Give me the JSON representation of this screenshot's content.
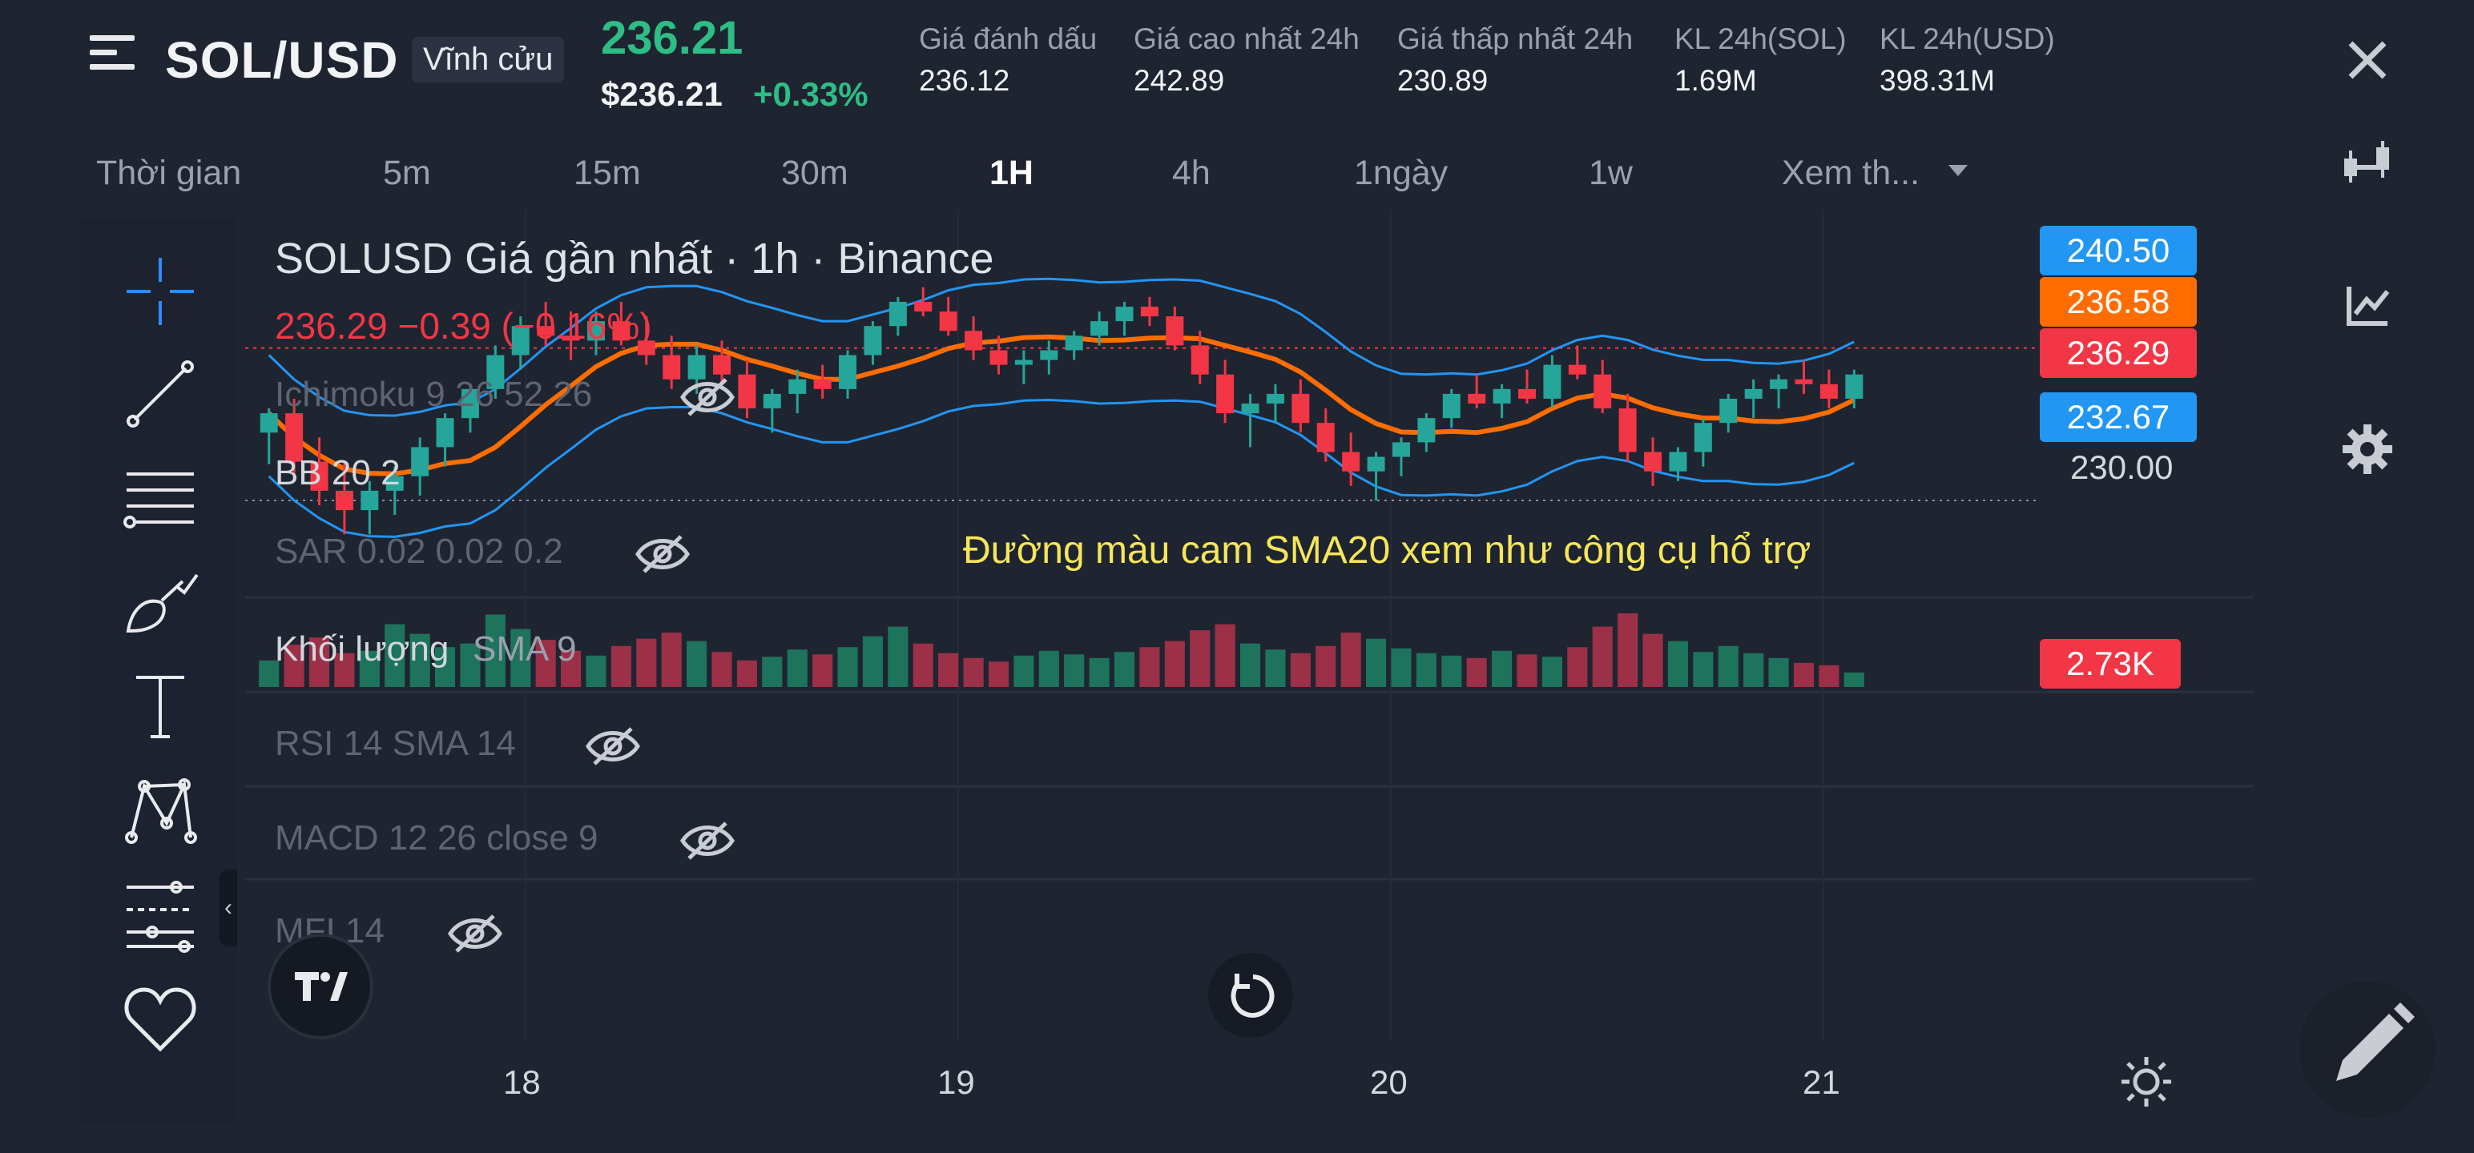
{
  "header": {
    "symbol": "SOL/USD",
    "contract_type": "Vĩnh cửu",
    "last_price": "236.21",
    "last_price_usd": "$236.21",
    "change_pct": "+0.33%",
    "stats": [
      {
        "label": "Giá đánh dấu",
        "value": "236.12"
      },
      {
        "label": "Giá cao nhất 24h",
        "value": "242.89"
      },
      {
        "label": "Giá thấp nhất 24h",
        "value": "230.89"
      },
      {
        "label": "KL 24h(SOL)",
        "value": "1.69M"
      },
      {
        "label": "KL 24h(USD)",
        "value": "398.31M"
      }
    ]
  },
  "timeframes": {
    "label": "Thời gian",
    "options": [
      "5m",
      "15m",
      "30m",
      "1H",
      "4h",
      "1ngày",
      "1w"
    ],
    "active": "1H",
    "more": "Xem th..."
  },
  "chart": {
    "legend_title": "SOLUSD Giá gần nhất · 1h · Binance",
    "legend_price": "236.29  −0.39 (−0.16%)",
    "indicators": [
      {
        "label": "Ichimoku 9 26 52 26",
        "hidden": true
      },
      {
        "label": "BB 20 2",
        "hidden": false
      },
      {
        "label": "SAR 0.02 0.02 0.2",
        "hidden": true
      }
    ],
    "annotation": "Đường màu cam SMA20 xem như công cụ hổ trợ",
    "volume_label": "Khối lượng",
    "volume_sma": "SMA 9",
    "volume_value": "2.73K",
    "sub_panes": [
      {
        "label": "RSI 14 SMA 14",
        "hidden": true
      },
      {
        "label": "MACD 12 26 close 9",
        "hidden": true
      },
      {
        "label": "MFI 14",
        "hidden": true
      }
    ],
    "price_tags": [
      {
        "value": "240.50",
        "color": "#2196f3"
      },
      {
        "value": "236.58",
        "color": "#ff6d00"
      },
      {
        "value": "236.29",
        "color": "#f23645"
      },
      {
        "value": "232.67",
        "color": "#2196f3"
      }
    ],
    "price_level": "230.00",
    "dates": [
      "18",
      "19",
      "20",
      "21"
    ],
    "colors": {
      "up": "#26a69a",
      "down": "#f23645",
      "sma": "#ff6d00",
      "bb": "#2196f3"
    }
  },
  "toolbar_icons": [
    "crosshair-icon",
    "trendline-icon",
    "fib-lines-icon",
    "brush-icon",
    "text-icon",
    "pattern-icon",
    "measure-icon",
    "favorite-icon"
  ],
  "right_icons": [
    "close-icon",
    "candles-icon",
    "chart-type-icon",
    "settings-icon",
    "sun-icon",
    "pencil-icon"
  ],
  "chart_data": {
    "type": "candlestick",
    "series": [
      {
        "name": "SOLUSD",
        "values": [
          [
            232.8,
            233.8,
            231.5,
            233.6
          ],
          [
            233.6,
            234.2,
            231.0,
            231.6
          ],
          [
            231.6,
            232.6,
            229.8,
            230.4
          ],
          [
            230.4,
            231.6,
            228.6,
            229.6
          ],
          [
            229.6,
            230.8,
            228.6,
            230.4
          ],
          [
            230.4,
            231.4,
            229.4,
            231.0
          ],
          [
            231.0,
            232.6,
            230.2,
            232.2
          ],
          [
            232.2,
            233.6,
            231.4,
            233.4
          ],
          [
            233.4,
            234.8,
            232.8,
            234.6
          ],
          [
            234.6,
            236.4,
            234.2,
            236.0
          ],
          [
            236.0,
            237.6,
            235.4,
            237.2
          ],
          [
            237.2,
            238.2,
            236.4,
            236.8
          ],
          [
            236.8,
            237.8,
            235.8,
            236.6
          ],
          [
            236.6,
            237.8,
            236.0,
            237.4
          ],
          [
            237.4,
            238.2,
            236.4,
            236.6
          ],
          [
            236.6,
            237.6,
            235.6,
            236.0
          ],
          [
            236.0,
            236.8,
            234.6,
            235.0
          ],
          [
            235.0,
            236.4,
            234.4,
            236.0
          ],
          [
            236.0,
            236.6,
            234.8,
            235.2
          ],
          [
            235.2,
            235.8,
            233.4,
            233.8
          ],
          [
            233.8,
            234.6,
            232.8,
            234.4
          ],
          [
            234.4,
            235.4,
            233.6,
            235.0
          ],
          [
            235.0,
            235.6,
            234.2,
            234.6
          ],
          [
            234.6,
            236.2,
            234.2,
            236.0
          ],
          [
            236.0,
            237.4,
            235.6,
            237.2
          ],
          [
            237.2,
            238.4,
            236.8,
            238.2
          ],
          [
            238.2,
            238.8,
            237.6,
            237.8
          ],
          [
            237.8,
            238.4,
            236.8,
            237.0
          ],
          [
            237.0,
            237.6,
            235.8,
            236.2
          ],
          [
            236.2,
            236.8,
            235.2,
            235.6
          ],
          [
            235.6,
            236.2,
            234.8,
            235.8
          ],
          [
            235.8,
            236.6,
            235.2,
            236.2
          ],
          [
            236.2,
            237.0,
            235.8,
            236.8
          ],
          [
            236.8,
            237.8,
            236.4,
            237.4
          ],
          [
            237.4,
            238.2,
            236.8,
            238.0
          ],
          [
            238.0,
            238.4,
            237.2,
            237.6
          ],
          [
            237.6,
            238.0,
            236.2,
            236.4
          ],
          [
            236.4,
            237.0,
            234.8,
            235.2
          ],
          [
            235.2,
            235.8,
            233.2,
            233.6
          ],
          [
            233.6,
            234.4,
            232.2,
            234.0
          ],
          [
            234.0,
            234.8,
            233.2,
            234.4
          ],
          [
            234.4,
            235.0,
            232.8,
            233.2
          ],
          [
            233.2,
            233.8,
            231.6,
            232.0
          ],
          [
            232.0,
            232.8,
            230.6,
            231.2
          ],
          [
            231.2,
            232.0,
            230.0,
            231.8
          ],
          [
            231.8,
            232.6,
            231.0,
            232.4
          ],
          [
            232.4,
            233.6,
            232.0,
            233.4
          ],
          [
            233.4,
            234.6,
            233.0,
            234.4
          ],
          [
            234.4,
            235.2,
            233.8,
            234.0
          ],
          [
            234.0,
            234.8,
            233.4,
            234.6
          ],
          [
            234.6,
            235.4,
            234.0,
            234.2
          ],
          [
            234.2,
            236.0,
            233.8,
            235.6
          ],
          [
            235.6,
            236.4,
            235.0,
            235.2
          ],
          [
            235.2,
            235.8,
            233.6,
            233.8
          ],
          [
            233.8,
            234.4,
            231.6,
            232.0
          ],
          [
            232.0,
            232.6,
            230.6,
            231.2
          ],
          [
            231.2,
            232.2,
            230.8,
            232.0
          ],
          [
            232.0,
            233.4,
            231.4,
            233.2
          ],
          [
            233.2,
            234.4,
            232.8,
            234.2
          ],
          [
            234.2,
            235.0,
            233.4,
            234.6
          ],
          [
            234.6,
            235.2,
            233.8,
            235.0
          ],
          [
            235.0,
            235.8,
            234.4,
            234.8
          ],
          [
            234.8,
            235.4,
            233.8,
            234.2
          ],
          [
            234.2,
            235.4,
            233.8,
            235.2
          ]
        ]
      }
    ],
    "ylim": [
      226,
      242
    ],
    "x_labels": [
      "18",
      "19",
      "20",
      "21"
    ],
    "overlays": [
      "SMA20",
      "BB 20 2 upper",
      "BB 20 2 lower"
    ],
    "volume": [
      22,
      35,
      41,
      28,
      30,
      52,
      44,
      33,
      36,
      60,
      48,
      39,
      30,
      26,
      34,
      40,
      45,
      38,
      29,
      22,
      25,
      31,
      27,
      33,
      42,
      50,
      36,
      28,
      24,
      21,
      26,
      30,
      27,
      24,
      29,
      33,
      38,
      47,
      52,
      36,
      31,
      28,
      34,
      45,
      40,
      32,
      28,
      26,
      24,
      30,
      27,
      25,
      33,
      50,
      61,
      44,
      38,
      29,
      34,
      28,
      24,
      20,
      18,
      12
    ]
  }
}
